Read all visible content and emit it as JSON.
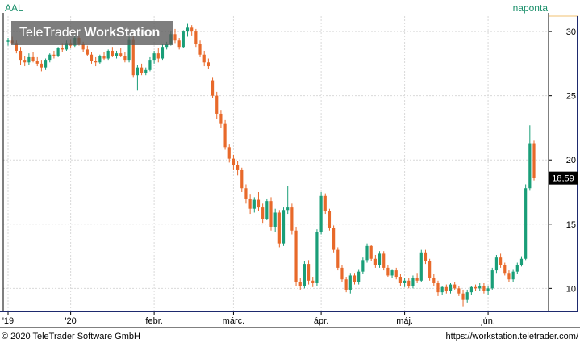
{
  "header": {
    "symbol": "AAL",
    "interval": "naponta"
  },
  "watermark": {
    "brand_part1": "TeleTrader ",
    "brand_part2": "WorkStation"
  },
  "footer": {
    "copyright": "© 2020 TeleTrader Software GmbH",
    "url": "https://workstation.teletrader.com/"
  },
  "colors": {
    "up": "#1a9e78",
    "down": "#e8692a",
    "grid": "#d9d9d9",
    "axis": "#1e2a6e",
    "price_tag_bg": "#000000"
  },
  "chart_data": {
    "type": "candlestick",
    "title": "",
    "xlabel": "",
    "ylabel": "",
    "ylim": [
      8.2,
      31.2
    ],
    "y_ticks": [
      10,
      15,
      20,
      25,
      30
    ],
    "x_tick_labels": [
      {
        "label": "'19",
        "index": 0
      },
      {
        "label": "'20",
        "index": 15
      },
      {
        "label": "febr.",
        "index": 35
      },
      {
        "label": "márc.",
        "index": 54
      },
      {
        "label": "ápr.",
        "index": 75
      },
      {
        "label": "máj.",
        "index": 95
      },
      {
        "label": "jún.",
        "index": 115
      }
    ],
    "last_price_label": "18,59",
    "last_price": 18.59,
    "candles": [
      [
        29.2,
        29.5,
        28.9,
        29.3
      ],
      [
        29.3,
        29.6,
        29.0,
        29.1
      ],
      [
        29.1,
        29.3,
        28.3,
        28.5
      ],
      [
        28.5,
        28.8,
        27.4,
        27.8
      ],
      [
        27.8,
        28.1,
        27.3,
        27.6
      ],
      [
        27.6,
        28.3,
        27.4,
        28.0
      ],
      [
        28.0,
        28.4,
        27.6,
        27.7
      ],
      [
        27.7,
        28.0,
        27.3,
        27.5
      ],
      [
        27.5,
        27.8,
        26.9,
        27.2
      ],
      [
        27.2,
        27.9,
        27.0,
        27.8
      ],
      [
        27.8,
        28.3,
        27.6,
        28.2
      ],
      [
        28.2,
        28.5,
        27.9,
        28.1
      ],
      [
        28.1,
        28.8,
        28.0,
        28.7
      ],
      [
        28.7,
        29.1,
        28.4,
        28.6
      ],
      [
        28.6,
        29.3,
        28.5,
        29.1
      ],
      [
        29.1,
        29.4,
        28.7,
        28.9
      ],
      [
        28.9,
        29.7,
        28.8,
        29.5
      ],
      [
        29.5,
        29.7,
        28.9,
        29.0
      ],
      [
        29.0,
        29.2,
        28.4,
        28.6
      ],
      [
        28.6,
        28.9,
        28.1,
        28.2
      ],
      [
        28.2,
        28.4,
        27.5,
        27.7
      ],
      [
        27.7,
        28.0,
        27.3,
        27.6
      ],
      [
        27.6,
        28.2,
        27.5,
        28.1
      ],
      [
        28.1,
        28.4,
        27.8,
        27.9
      ],
      [
        27.9,
        28.6,
        27.8,
        28.5
      ],
      [
        28.5,
        28.8,
        28.0,
        28.1
      ],
      [
        28.1,
        28.5,
        27.9,
        28.3
      ],
      [
        28.3,
        28.7,
        28.0,
        28.1
      ],
      [
        28.1,
        28.4,
        27.6,
        27.8
      ],
      [
        27.8,
        29.6,
        27.6,
        29.4
      ],
      [
        29.4,
        29.7,
        26.4,
        26.6
      ],
      [
        26.6,
        27.4,
        25.4,
        27.2
      ],
      [
        27.2,
        27.5,
        26.6,
        26.8
      ],
      [
        26.8,
        27.2,
        26.6,
        27.0
      ],
      [
        27.0,
        28.0,
        26.9,
        27.8
      ],
      [
        27.8,
        28.5,
        27.5,
        28.3
      ],
      [
        28.3,
        28.7,
        27.6,
        27.9
      ],
      [
        27.9,
        29.0,
        27.8,
        28.8
      ],
      [
        28.8,
        29.2,
        28.6,
        29.0
      ],
      [
        29.0,
        30.0,
        28.9,
        29.8
      ],
      [
        29.8,
        30.2,
        29.1,
        29.3
      ],
      [
        29.3,
        29.5,
        28.6,
        28.8
      ],
      [
        28.8,
        30.1,
        28.7,
        30.0
      ],
      [
        30.0,
        30.6,
        29.6,
        30.3
      ],
      [
        30.3,
        30.5,
        29.7,
        30.0
      ],
      [
        30.0,
        30.2,
        28.8,
        29.0
      ],
      [
        29.0,
        29.3,
        28.0,
        28.2
      ],
      [
        28.2,
        28.5,
        27.3,
        27.6
      ],
      [
        27.6,
        27.9,
        27.1,
        27.3
      ],
      [
        26.2,
        26.4,
        24.8,
        25.0
      ],
      [
        25.0,
        25.3,
        23.2,
        23.6
      ],
      [
        23.6,
        23.9,
        22.5,
        22.8
      ],
      [
        22.8,
        23.1,
        20.8,
        21.0
      ],
      [
        21.0,
        21.2,
        19.8,
        20.1
      ],
      [
        20.1,
        20.4,
        19.2,
        19.6
      ],
      [
        19.6,
        19.9,
        18.8,
        19.2
      ],
      [
        19.2,
        19.4,
        17.5,
        17.8
      ],
      [
        17.8,
        18.1,
        16.6,
        17.0
      ],
      [
        17.0,
        17.3,
        15.8,
        16.2
      ],
      [
        16.2,
        17.1,
        15.9,
        16.9
      ],
      [
        16.9,
        17.5,
        16.0,
        16.3
      ],
      [
        16.3,
        16.6,
        15.1,
        15.4
      ],
      [
        15.4,
        17.0,
        15.3,
        16.8
      ],
      [
        16.8,
        17.1,
        14.5,
        14.8
      ],
      [
        14.8,
        16.2,
        14.4,
        15.9
      ],
      [
        15.9,
        16.1,
        13.2,
        13.5
      ],
      [
        13.5,
        16.3,
        13.3,
        16.1
      ],
      [
        16.1,
        18.0,
        15.8,
        16.3
      ],
      [
        16.3,
        16.6,
        14.2,
        14.5
      ],
      [
        14.5,
        14.8,
        10.2,
        10.5
      ],
      [
        10.5,
        10.8,
        9.9,
        10.2
      ],
      [
        10.2,
        12.1,
        10.0,
        11.9
      ],
      [
        11.9,
        12.2,
        10.3,
        10.6
      ],
      [
        10.6,
        10.9,
        10.1,
        10.4
      ],
      [
        10.4,
        14.6,
        10.2,
        14.4
      ],
      [
        14.4,
        17.5,
        14.2,
        17.2
      ],
      [
        17.2,
        17.4,
        15.8,
        16.0
      ],
      [
        16.0,
        16.2,
        14.5,
        14.7
      ],
      [
        14.7,
        14.9,
        12.8,
        13.0
      ],
      [
        13.0,
        13.2,
        11.4,
        11.6
      ],
      [
        11.6,
        11.8,
        10.5,
        10.7
      ],
      [
        10.7,
        10.9,
        9.7,
        9.9
      ],
      [
        9.9,
        11.2,
        9.6,
        11.0
      ],
      [
        11.0,
        11.2,
        10.3,
        10.5
      ],
      [
        10.5,
        11.5,
        10.3,
        11.3
      ],
      [
        11.3,
        12.4,
        11.1,
        12.2
      ],
      [
        12.2,
        13.5,
        12.0,
        13.3
      ],
      [
        13.3,
        13.4,
        12.1,
        12.3
      ],
      [
        12.3,
        12.6,
        11.6,
        11.8
      ],
      [
        11.8,
        12.9,
        11.6,
        12.7
      ],
      [
        12.7,
        12.9,
        11.4,
        11.6
      ],
      [
        11.6,
        11.8,
        10.9,
        11.0
      ],
      [
        11.0,
        11.5,
        10.8,
        11.4
      ],
      [
        11.4,
        11.6,
        10.7,
        10.9
      ],
      [
        10.9,
        11.1,
        10.2,
        10.4
      ],
      [
        10.4,
        10.8,
        10.1,
        10.6
      ],
      [
        10.6,
        10.8,
        10.0,
        10.2
      ],
      [
        10.2,
        11.0,
        10.0,
        10.8
      ],
      [
        10.8,
        11.2,
        10.4,
        10.6
      ],
      [
        10.6,
        13.0,
        10.5,
        12.8
      ],
      [
        12.8,
        13.0,
        11.9,
        12.1
      ],
      [
        12.1,
        12.3,
        10.6,
        10.8
      ],
      [
        10.8,
        11.1,
        10.2,
        10.4
      ],
      [
        10.4,
        10.6,
        9.4,
        9.7
      ],
      [
        9.7,
        10.2,
        9.5,
        10.1
      ],
      [
        10.1,
        10.3,
        9.6,
        9.8
      ],
      [
        9.8,
        10.4,
        9.6,
        10.3
      ],
      [
        10.3,
        10.5,
        9.9,
        10.0
      ],
      [
        10.0,
        10.2,
        9.4,
        9.6
      ],
      [
        9.6,
        9.9,
        8.6,
        9.1
      ],
      [
        9.1,
        9.9,
        8.9,
        9.7
      ],
      [
        9.7,
        10.2,
        9.5,
        10.1
      ],
      [
        10.1,
        10.3,
        9.8,
        10.0
      ],
      [
        10.0,
        10.4,
        9.8,
        10.2
      ],
      [
        10.2,
        10.4,
        9.6,
        9.8
      ],
      [
        9.8,
        10.2,
        9.5,
        10.0
      ],
      [
        10.0,
        11.6,
        9.9,
        11.4
      ],
      [
        11.4,
        12.6,
        11.2,
        12.4
      ],
      [
        12.4,
        12.7,
        11.6,
        11.8
      ],
      [
        11.8,
        12.0,
        11.0,
        11.2
      ],
      [
        11.2,
        11.4,
        10.5,
        10.7
      ],
      [
        10.7,
        11.5,
        10.5,
        11.3
      ],
      [
        11.3,
        12.0,
        11.1,
        11.8
      ],
      [
        11.8,
        12.5,
        11.7,
        12.3
      ],
      [
        12.3,
        18.1,
        12.2,
        17.8
      ],
      [
        17.8,
        22.7,
        17.6,
        21.3
      ],
      [
        21.3,
        21.5,
        18.4,
        18.59
      ]
    ]
  }
}
